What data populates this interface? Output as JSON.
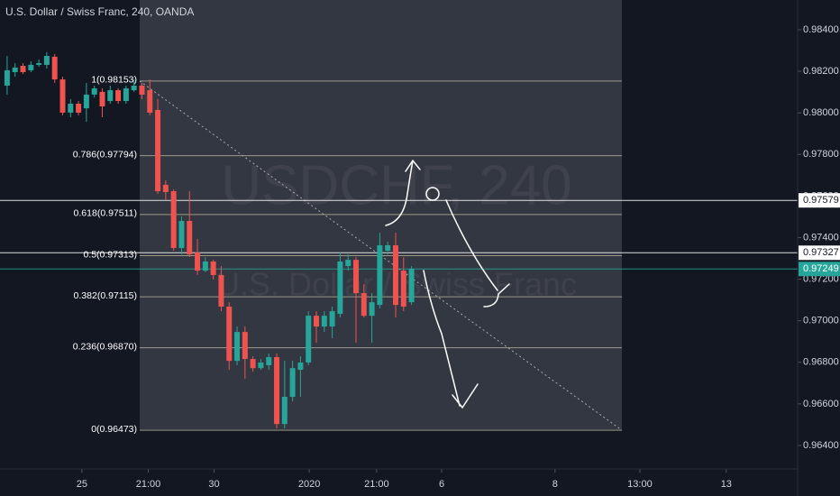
{
  "chart_data": {
    "type": "candlestick",
    "title": "U.S. Dollar / Swiss Franc, 240, OANDA",
    "watermark": "USDCHF, 240",
    "watermark_subtitle": "U.S. Dollar / Swiss Franc",
    "up_color": "#26a69a",
    "down_color": "#ef5350",
    "x": [
      0,
      1,
      2,
      3,
      4,
      5,
      6,
      7,
      8,
      9,
      10,
      11,
      12,
      13,
      14,
      15,
      16,
      17,
      18,
      19,
      20,
      21,
      22,
      23,
      24,
      25,
      26,
      27,
      28,
      29,
      30,
      31,
      32,
      33,
      34,
      35,
      36,
      37,
      38,
      39,
      40,
      41,
      42,
      43,
      44,
      45,
      46,
      47,
      48,
      49,
      50,
      51
    ],
    "open": [
      0.98131,
      0.98196,
      0.98226,
      0.98205,
      0.98231,
      0.98231,
      0.9827,
      0.98161,
      0.98001,
      0.98044,
      0.98022,
      0.98088,
      0.98101,
      0.98057,
      0.98109,
      0.98057,
      0.98109,
      0.98131,
      0.98109,
      0.98014,
      0.97654,
      0.97623,
      0.9735,
      0.9748,
      0.97328,
      0.97241,
      0.97285,
      0.9722,
      0.97068,
      0.96807,
      0.96946,
      0.96816,
      0.96772,
      0.96786,
      0.96825,
      0.96503,
      0.96634,
      0.96764,
      0.96799,
      0.97024,
      0.96972,
      0.96972,
      0.97033,
      0.97263,
      0.97293,
      0.97133,
      0.97024,
      0.97076,
      0.97337,
      0.97363,
      0.97241,
      0.97089
    ],
    "close": [
      0.98205,
      0.98218,
      0.98196,
      0.98231,
      0.98239,
      0.98274,
      0.98161,
      0.98001,
      0.98044,
      0.98001,
      0.98088,
      0.98118,
      0.98031,
      0.98109,
      0.98057,
      0.98118,
      0.98131,
      0.98088,
      0.98001,
      0.97623,
      0.97619,
      0.9735,
      0.9748,
      0.97319,
      0.97241,
      0.97285,
      0.9722,
      0.97068,
      0.96807,
      0.96946,
      0.96816,
      0.96772,
      0.96799,
      0.96825,
      0.96503,
      0.96634,
      0.96772,
      0.96799,
      0.97024,
      0.96972,
      0.97024,
      0.97046,
      0.97285,
      0.97293,
      0.97133,
      0.97024,
      0.97089,
      0.97363,
      0.97363,
      0.97076,
      0.97068,
      0.9725
    ],
    "high": [
      0.98274,
      0.98239,
      0.98239,
      0.98248,
      0.98257,
      0.98292,
      0.98283,
      0.98174,
      0.98066,
      0.98057,
      0.98144,
      0.98131,
      0.98118,
      0.98131,
      0.98118,
      0.98131,
      0.98161,
      0.98144,
      0.98161,
      0.98066,
      0.97675,
      0.97632,
      0.97502,
      0.97623,
      0.97393,
      0.97306,
      0.97293,
      0.97263,
      0.97089,
      0.96972,
      0.96972,
      0.96829,
      0.96816,
      0.96842,
      0.96842,
      0.96807,
      0.96807,
      0.96829,
      0.97046,
      0.97046,
      0.97046,
      0.97068,
      0.97328,
      0.97319,
      0.97306,
      0.97176,
      0.97133,
      0.97423,
      0.9738,
      0.97423,
      0.97306,
      0.97263
    ],
    "low": [
      0.98088,
      0.98174,
      0.98187,
      0.98196,
      0.98222,
      0.98213,
      0.98144,
      0.97988,
      0.97979,
      0.97988,
      0.97957,
      0.98074,
      0.97979,
      0.98044,
      0.98044,
      0.98044,
      0.98101,
      0.98066,
      0.97988,
      0.9761,
      0.9758,
      0.97337,
      0.97319,
      0.97306,
      0.9722,
      0.97233,
      0.97198,
      0.97046,
      0.96764,
      0.96786,
      0.9672,
      0.96755,
      0.96764,
      0.96764,
      0.96482,
      0.96482,
      0.96612,
      0.96634,
      0.96786,
      0.96894,
      0.96946,
      0.96916,
      0.97016,
      0.97241,
      0.96894,
      0.97016,
      0.96894,
      0.97059,
      0.97319,
      0.97016,
      0.97046,
      0.97076
    ],
    "xlim": [
      -0.9,
      99.7
    ],
    "ylim": [
      0.96287,
      0.98543
    ],
    "xticks": [
      {
        "value": 9.43,
        "label": "25"
      },
      {
        "value": 17.8,
        "label": "21:00"
      },
      {
        "value": 26.1,
        "label": "30"
      },
      {
        "value": 38.1,
        "label": "2020"
      },
      {
        "value": 46.6,
        "label": "21:00"
      },
      {
        "value": 54.8,
        "label": "6"
      },
      {
        "value": 69.1,
        "label": "8"
      },
      {
        "value": 79.8,
        "label": "13:00"
      },
      {
        "value": 90.7,
        "label": "13"
      }
    ],
    "yticks": [
      {
        "value": 0.984,
        "label": "0.98400"
      },
      {
        "value": 0.982,
        "label": "0.98200"
      },
      {
        "value": 0.98,
        "label": "0.98000"
      },
      {
        "value": 0.978,
        "label": "0.97800"
      },
      {
        "value": 0.976,
        "label": "0.97600"
      },
      {
        "value": 0.974,
        "label": "0.97400"
      },
      {
        "value": 0.972,
        "label": "0.97200"
      },
      {
        "value": 0.97,
        "label": "0.97000"
      },
      {
        "value": 0.968,
        "label": "0.96800"
      },
      {
        "value": 0.966,
        "label": "0.96600"
      },
      {
        "value": 0.964,
        "label": "0.96400"
      }
    ],
    "fib_levels": [
      {
        "value": 0.98153,
        "label": "1(0.98153)"
      },
      {
        "value": 0.97794,
        "label": "0.786(0.97794)"
      },
      {
        "value": 0.97511,
        "label": "0.618(0.97511)"
      },
      {
        "value": 0.97313,
        "label": "0.5(0.97313)"
      },
      {
        "value": 0.97115,
        "label": "0.382(0.97115)"
      },
      {
        "value": 0.9687,
        "label": "0.236(0.96870)"
      },
      {
        "value": 0.96473,
        "label": "0(0.96473)"
      }
    ],
    "price_lines": [
      {
        "value": 0.97579,
        "label": "0.97579",
        "color": "#ffffff"
      },
      {
        "value": 0.97327,
        "label": "0.97327",
        "color": "#ffffff"
      },
      {
        "value": 0.97249,
        "label": "0.97249",
        "color": "#26a69a"
      }
    ]
  }
}
